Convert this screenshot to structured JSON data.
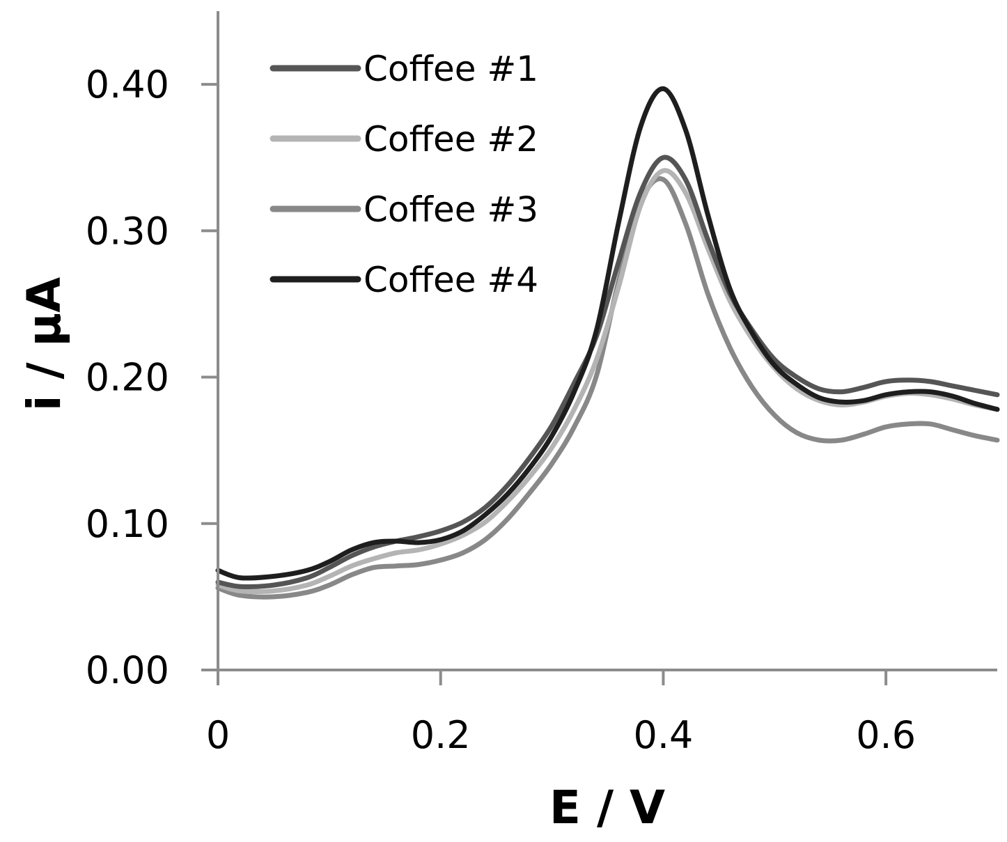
{
  "chart_data": {
    "type": "line",
    "title": "",
    "xlabel": "E / V",
    "ylabel": "i / µA",
    "xlim": [
      0,
      0.7
    ],
    "ylim": [
      0,
      0.45
    ],
    "xticks": [
      0,
      0.2,
      0.4,
      0.6
    ],
    "xtick_labels": [
      "0",
      "0.2",
      "0.4",
      "0.6"
    ],
    "yticks": [
      0,
      0.1,
      0.2,
      0.3,
      0.4
    ],
    "ytick_labels": [
      "0.00",
      "0.10",
      "0.20",
      "0.30",
      "0.40"
    ],
    "grid": false,
    "legend_position": "top-left",
    "series": [
      {
        "name": "Coffee #1",
        "color": "#555555",
        "x": [
          0,
          0.02,
          0.05,
          0.08,
          0.1,
          0.12,
          0.14,
          0.16,
          0.18,
          0.2,
          0.22,
          0.24,
          0.26,
          0.28,
          0.3,
          0.32,
          0.34,
          0.36,
          0.38,
          0.4,
          0.42,
          0.44,
          0.46,
          0.48,
          0.5,
          0.52,
          0.54,
          0.56,
          0.58,
          0.6,
          0.62,
          0.64,
          0.66,
          0.68,
          0.7
        ],
        "y": [
          0.06,
          0.057,
          0.058,
          0.063,
          0.07,
          0.078,
          0.084,
          0.088,
          0.091,
          0.095,
          0.101,
          0.111,
          0.126,
          0.145,
          0.167,
          0.196,
          0.228,
          0.279,
          0.327,
          0.35,
          0.335,
          0.294,
          0.257,
          0.232,
          0.212,
          0.2,
          0.192,
          0.19,
          0.193,
          0.197,
          0.198,
          0.197,
          0.194,
          0.191,
          0.188
        ]
      },
      {
        "name": "Coffee #2",
        "color": "#b4b4b4",
        "x": [
          0,
          0.02,
          0.05,
          0.08,
          0.1,
          0.12,
          0.14,
          0.16,
          0.18,
          0.2,
          0.22,
          0.24,
          0.26,
          0.28,
          0.3,
          0.32,
          0.34,
          0.36,
          0.38,
          0.4,
          0.42,
          0.44,
          0.46,
          0.48,
          0.5,
          0.52,
          0.54,
          0.56,
          0.58,
          0.6,
          0.62,
          0.64,
          0.66,
          0.68,
          0.7
        ],
        "y": [
          0.058,
          0.054,
          0.054,
          0.058,
          0.064,
          0.071,
          0.076,
          0.08,
          0.082,
          0.086,
          0.092,
          0.101,
          0.115,
          0.132,
          0.152,
          0.178,
          0.212,
          0.262,
          0.318,
          0.341,
          0.326,
          0.288,
          0.252,
          0.226,
          0.206,
          0.192,
          0.184,
          0.181,
          0.183,
          0.187,
          0.189,
          0.188,
          0.185,
          0.181,
          0.178
        ]
      },
      {
        "name": "Coffee #3",
        "color": "#888888",
        "x": [
          0,
          0.02,
          0.05,
          0.08,
          0.1,
          0.12,
          0.14,
          0.16,
          0.18,
          0.2,
          0.22,
          0.24,
          0.26,
          0.28,
          0.3,
          0.32,
          0.34,
          0.36,
          0.38,
          0.4,
          0.42,
          0.44,
          0.46,
          0.48,
          0.5,
          0.52,
          0.54,
          0.56,
          0.58,
          0.6,
          0.62,
          0.64,
          0.66,
          0.68,
          0.7
        ],
        "y": [
          0.056,
          0.051,
          0.05,
          0.053,
          0.058,
          0.065,
          0.07,
          0.071,
          0.072,
          0.075,
          0.08,
          0.089,
          0.103,
          0.121,
          0.141,
          0.166,
          0.201,
          0.266,
          0.32,
          0.335,
          0.305,
          0.257,
          0.22,
          0.193,
          0.174,
          0.162,
          0.157,
          0.157,
          0.161,
          0.166,
          0.168,
          0.168,
          0.164,
          0.16,
          0.157
        ]
      },
      {
        "name": "Coffee #4",
        "color": "#1e1e1e",
        "x": [
          0,
          0.02,
          0.05,
          0.08,
          0.1,
          0.12,
          0.14,
          0.16,
          0.18,
          0.2,
          0.22,
          0.24,
          0.26,
          0.28,
          0.3,
          0.32,
          0.34,
          0.36,
          0.38,
          0.4,
          0.42,
          0.44,
          0.46,
          0.48,
          0.5,
          0.52,
          0.54,
          0.56,
          0.58,
          0.6,
          0.62,
          0.64,
          0.66,
          0.68,
          0.7
        ],
        "y": [
          0.068,
          0.063,
          0.064,
          0.068,
          0.074,
          0.082,
          0.087,
          0.088,
          0.087,
          0.089,
          0.095,
          0.106,
          0.12,
          0.138,
          0.16,
          0.19,
          0.232,
          0.306,
          0.372,
          0.397,
          0.369,
          0.311,
          0.26,
          0.23,
          0.208,
          0.195,
          0.186,
          0.183,
          0.184,
          0.188,
          0.19,
          0.19,
          0.187,
          0.182,
          0.178
        ]
      }
    ]
  }
}
